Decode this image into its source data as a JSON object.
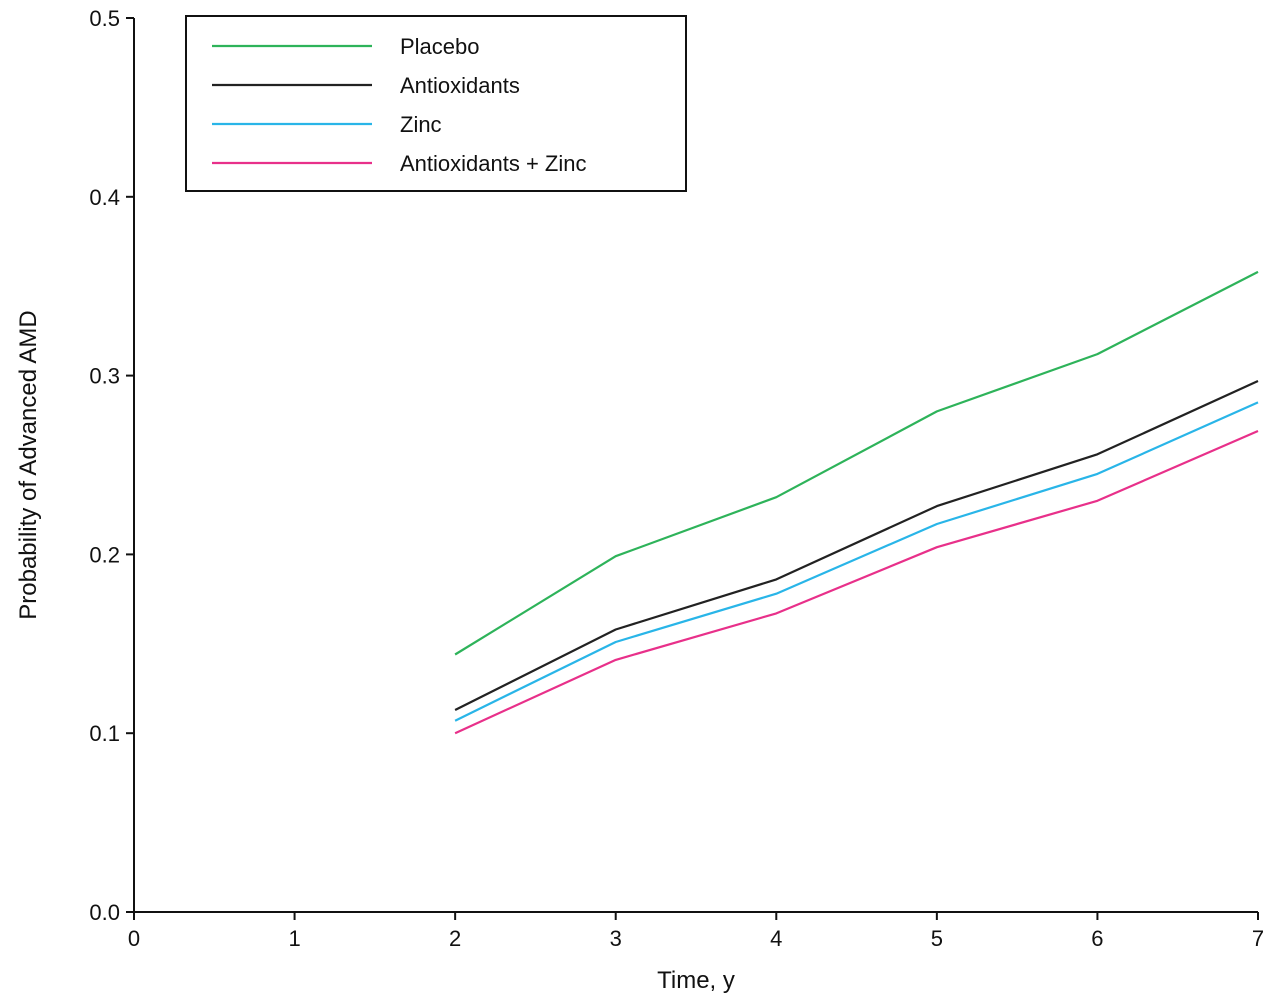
{
  "chart_data": {
    "type": "line",
    "title": "",
    "xlabel": "Time, y",
    "ylabel": "Probability of Advanced AMD",
    "xlim": [
      0,
      7
    ],
    "ylim": [
      0,
      0.5
    ],
    "xticks": [
      "0",
      "1",
      "2",
      "3",
      "4",
      "5",
      "6",
      "7"
    ],
    "yticks": [
      "0.0",
      "0.1",
      "0.2",
      "0.3",
      "0.4",
      "0.5"
    ],
    "grid": false,
    "legend_position": "top-left",
    "x": [
      2,
      3,
      4,
      5,
      6,
      7
    ],
    "series": [
      {
        "name": "Placebo",
        "color": "#2eb35a",
        "values": [
          0.144,
          0.199,
          0.232,
          0.28,
          0.312,
          0.358
        ]
      },
      {
        "name": "Antioxidants",
        "color": "#222222",
        "values": [
          0.113,
          0.158,
          0.186,
          0.227,
          0.256,
          0.297
        ]
      },
      {
        "name": "Zinc",
        "color": "#29b5e8",
        "values": [
          0.107,
          0.151,
          0.178,
          0.217,
          0.245,
          0.285
        ]
      },
      {
        "name": "Antioxidants + Zinc",
        "color": "#e8308a",
        "values": [
          0.1,
          0.141,
          0.167,
          0.204,
          0.23,
          0.269
        ]
      }
    ]
  }
}
